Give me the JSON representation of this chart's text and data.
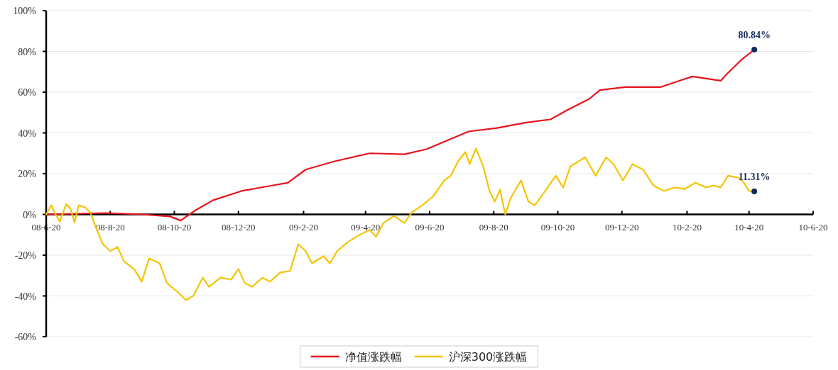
{
  "chart_data": {
    "type": "line",
    "xlim": [
      "2008-06-20",
      "2010-06-20"
    ],
    "ylim": [
      -60,
      100
    ],
    "xticks": [
      {
        "value": "2008-06-20",
        "label": "08-6-20"
      },
      {
        "value": "2008-08-20",
        "label": "08-8-20"
      },
      {
        "value": "2008-10-20",
        "label": "08-10-20"
      },
      {
        "value": "2008-12-20",
        "label": "08-12-20"
      },
      {
        "value": "2009-02-20",
        "label": "09-2-20"
      },
      {
        "value": "2009-04-20",
        "label": "09-4-20"
      },
      {
        "value": "2009-06-20",
        "label": "09-6-20"
      },
      {
        "value": "2009-08-20",
        "label": "09-8-20"
      },
      {
        "value": "2009-10-20",
        "label": "09-10-20"
      },
      {
        "value": "2009-12-20",
        "label": "09-12-20"
      },
      {
        "value": "2010-02-20",
        "label": "10-2-20"
      },
      {
        "value": "2010-04-20",
        "label": "10-4-20"
      },
      {
        "value": "2010-06-20",
        "label": "10-6-20"
      }
    ],
    "yticks": [
      {
        "value": -60,
        "label": "-60%"
      },
      {
        "value": -40,
        "label": "-40%"
      },
      {
        "value": -20,
        "label": "-20%"
      },
      {
        "value": 0,
        "label": "0%"
      },
      {
        "value": 20,
        "label": "20%"
      },
      {
        "value": 40,
        "label": "40%"
      },
      {
        "value": 60,
        "label": "60%"
      },
      {
        "value": 80,
        "label": "80%"
      },
      {
        "value": 100,
        "label": "100%"
      }
    ],
    "grid": "y",
    "legend": "bottom",
    "marker": "none",
    "line_style": "solid",
    "series": [
      {
        "name": "净值涨跌幅",
        "color": "#e8141b",
        "x": [
          "2008-06-20",
          "2008-08-16",
          "2008-09-19",
          "2008-10-16",
          "2008-10-26",
          "2008-11-09",
          "2008-11-26",
          "2008-12-23",
          "2009-01-19",
          "2009-02-05",
          "2009-02-22",
          "2009-03-21",
          "2009-04-24",
          "2009-05-27",
          "2009-06-17",
          "2009-07-27",
          "2009-08-23",
          "2009-09-19",
          "2009-10-13",
          "2009-10-30",
          "2009-11-19",
          "2009-11-29",
          "2009-12-23",
          "2010-01-26",
          "2010-02-15",
          "2010-02-25",
          "2010-03-24",
          "2010-03-31",
          "2010-04-13",
          "2010-04-25"
        ],
        "values": [
          0,
          0.7,
          0,
          -1,
          -3,
          2,
          7,
          11.5,
          14,
          15.5,
          22,
          26,
          30,
          29.5,
          32,
          40.7,
          42.4,
          45,
          46.6,
          51.5,
          56.7,
          61,
          62.5,
          62.5,
          66,
          67.7,
          65.6,
          69.5,
          76,
          80.84
        ]
      },
      {
        "name": "沪深300涨跌幅",
        "color": "#f5c400",
        "x": [
          "2008-06-20",
          "2008-06-25",
          "2008-06-29",
          "2008-07-03",
          "2008-07-09",
          "2008-07-13",
          "2008-07-17",
          "2008-07-21",
          "2008-07-27",
          "2008-08-01",
          "2008-08-06",
          "2008-08-13",
          "2008-08-20",
          "2008-08-27",
          "2008-09-02",
          "2008-09-12",
          "2008-09-19",
          "2008-09-26",
          "2008-10-06",
          "2008-10-13",
          "2008-10-23",
          "2008-10-31",
          "2008-11-07",
          "2008-11-16",
          "2008-11-22",
          "2008-12-03",
          "2008-12-13",
          "2008-12-20",
          "2008-12-26",
          "2009-01-02",
          "2009-01-12",
          "2009-01-19",
          "2009-01-29",
          "2009-02-07",
          "2009-02-15",
          "2009-02-22",
          "2009-02-28",
          "2009-03-11",
          "2009-03-17",
          "2009-03-24",
          "2009-04-03",
          "2009-04-13",
          "2009-04-24",
          "2009-04-30",
          "2009-05-07",
          "2009-05-17",
          "2009-05-27",
          "2009-06-03",
          "2009-06-13",
          "2009-06-23",
          "2009-07-04",
          "2009-07-10",
          "2009-07-17",
          "2009-07-24",
          "2009-07-28",
          "2009-08-03",
          "2009-08-10",
          "2009-08-16",
          "2009-08-21",
          "2009-08-26",
          "2009-08-31",
          "2009-09-05",
          "2009-09-15",
          "2009-09-22",
          "2009-09-28",
          "2009-10-08",
          "2009-10-18",
          "2009-10-25",
          "2009-11-01",
          "2009-11-15",
          "2009-11-25",
          "2009-12-05",
          "2009-12-12",
          "2009-12-21",
          "2009-12-30",
          "2010-01-09",
          "2010-01-19",
          "2010-01-29",
          "2010-02-08",
          "2010-02-18",
          "2010-02-28",
          "2010-03-10",
          "2010-03-17",
          "2010-03-24",
          "2010-03-31",
          "2010-04-10",
          "2010-04-15",
          "2010-04-20",
          "2010-04-25"
        ],
        "values": [
          0,
          4.5,
          0,
          -3.5,
          5,
          3,
          -4,
          4.5,
          3.5,
          1,
          -6,
          -14.6,
          -18,
          -16,
          -23,
          -27,
          -33,
          -21.6,
          -24,
          -33.7,
          -38,
          -42,
          -40,
          -31,
          -35.5,
          -31,
          -32,
          -26.8,
          -33.7,
          -35.5,
          -31,
          -33,
          -28.5,
          -27.8,
          -14.6,
          -18,
          -24,
          -20.5,
          -24,
          -18,
          -13.6,
          -10.4,
          -7.6,
          -11,
          -4.2,
          -0.7,
          -4.2,
          1,
          4.5,
          8.7,
          16.7,
          19,
          26,
          30.6,
          24.7,
          32.3,
          23.6,
          11.5,
          6.3,
          12.2,
          0,
          8,
          16.7,
          6.3,
          4.5,
          11.5,
          19,
          13.2,
          23.6,
          28,
          19,
          28,
          24.7,
          16.7,
          24.7,
          22,
          14.2,
          11.5,
          13.2,
          12.5,
          15.6,
          13.2,
          14.2,
          13.2,
          19,
          18,
          15.6,
          11.5,
          11.31
        ]
      }
    ],
    "annotations": [
      {
        "text": "80.84%",
        "x": "2010-04-25",
        "y": 80.84
      },
      {
        "text": "11.31%",
        "x": "2010-04-25",
        "y": 11.31
      }
    ]
  }
}
